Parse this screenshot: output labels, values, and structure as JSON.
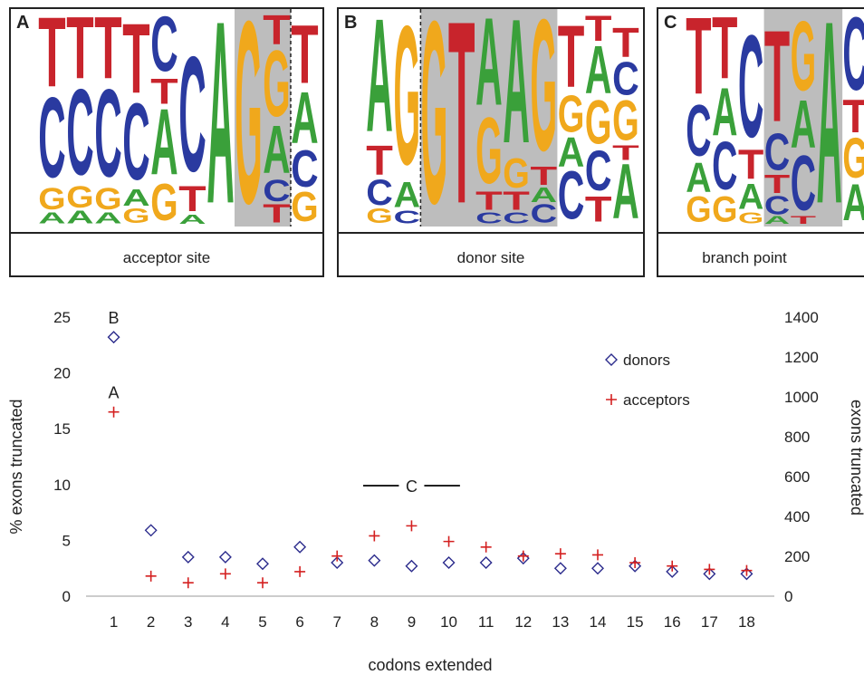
{
  "logos": [
    {
      "letter": "A",
      "caption": "acceptor site",
      "highlight_range": [
        8,
        9
      ],
      "dashed_after": 9,
      "columns": [
        [
          [
            "A",
            6
          ],
          [
            "G",
            12
          ],
          [
            "C",
            44
          ],
          [
            "T",
            38
          ]
        ],
        [
          [
            "A",
            7
          ],
          [
            "G",
            12
          ],
          [
            "C",
            47
          ],
          [
            "T",
            34
          ]
        ],
        [
          [
            "A",
            6
          ],
          [
            "G",
            12
          ],
          [
            "C",
            48
          ],
          [
            "T",
            34
          ]
        ],
        [
          [
            "G",
            8
          ],
          [
            "A",
            9
          ],
          [
            "C",
            42
          ],
          [
            "T",
            38
          ]
        ],
        [
          [
            "G",
            20
          ],
          [
            "A",
            36
          ],
          [
            "T",
            14
          ],
          [
            "C",
            30
          ]
        ],
        [
          [
            "A",
            5
          ],
          [
            "T",
            14
          ],
          [
            "C",
            63
          ]
        ],
        [
          [
            "A",
            100
          ]
        ],
        [
          [
            "G",
            100
          ]
        ],
        [
          [
            "T",
            10
          ],
          [
            "C",
            12
          ],
          [
            "A",
            26
          ],
          [
            "G",
            36
          ],
          [
            "T",
            16
          ]
        ],
        [
          [
            "G",
            16
          ],
          [
            "C",
            20
          ],
          [
            "A",
            28
          ],
          [
            "T",
            32
          ]
        ]
      ]
    },
    {
      "letter": "B",
      "caption": "donor site",
      "highlight_range": [
        3,
        7
      ],
      "dashed_after": 2,
      "columns": [
        [
          [
            "G",
            8
          ],
          [
            "C",
            14
          ],
          [
            "T",
            16
          ],
          [
            "A",
            62
          ]
        ],
        [
          [
            "C",
            7
          ],
          [
            "A",
            14
          ],
          [
            "G",
            76
          ]
        ],
        [
          [
            "G",
            100
          ]
        ],
        [
          [
            "T",
            100
          ]
        ],
        [
          [
            "C",
            6
          ],
          [
            "T",
            10
          ],
          [
            "G",
            36
          ],
          [
            "A",
            48
          ]
        ],
        [
          [
            "C",
            6
          ],
          [
            "T",
            10
          ],
          [
            "G",
            16
          ],
          [
            "A",
            68
          ]
        ],
        [
          [
            "C",
            10
          ],
          [
            "A",
            8
          ],
          [
            "T",
            10
          ],
          [
            "G",
            72
          ]
        ],
        [
          [
            "C",
            26
          ],
          [
            "A",
            16
          ],
          [
            "G",
            20
          ],
          [
            "T",
            34
          ]
        ],
        [
          [
            "T",
            14
          ],
          [
            "C",
            22
          ],
          [
            "G",
            24
          ],
          [
            "A",
            26
          ],
          [
            "T",
            14
          ]
        ],
        [
          [
            "A",
            30
          ],
          [
            "T",
            8
          ],
          [
            "G",
            22
          ],
          [
            "C",
            18
          ],
          [
            "T",
            16
          ]
        ]
      ]
    },
    {
      "letter": "C",
      "caption": "branch point",
      "highlight_range": [
        4,
        6
      ],
      "dashed_after": null,
      "columns": [
        [
          [
            "G",
            14
          ],
          [
            "A",
            16
          ],
          [
            "C",
            28
          ],
          [
            "T",
            42
          ]
        ],
        [
          [
            "G",
            14
          ],
          [
            "C",
            26
          ],
          [
            "A",
            26
          ],
          [
            "T",
            34
          ]
        ],
        [
          [
            "G",
            6
          ],
          [
            "A",
            14
          ],
          [
            "T",
            16
          ],
          [
            "C",
            56
          ]
        ],
        [
          [
            "A",
            4
          ],
          [
            "C",
            10
          ],
          [
            "T",
            10
          ],
          [
            "C",
            20
          ],
          [
            "T",
            50
          ]
        ],
        [
          [
            "T",
            4
          ],
          [
            "C",
            30
          ],
          [
            "A",
            26
          ],
          [
            "G",
            38
          ]
        ],
        [
          [
            "A",
            100
          ]
        ],
        [
          [
            "A",
            20
          ],
          [
            "G",
            22
          ],
          [
            "T",
            18
          ],
          [
            "C",
            40
          ]
        ]
      ]
    }
  ],
  "chart_data": {
    "type": "scatter",
    "x": [
      1,
      2,
      3,
      4,
      5,
      6,
      7,
      8,
      9,
      10,
      11,
      12,
      13,
      14,
      15,
      16,
      17,
      18
    ],
    "series": [
      {
        "name": "donors",
        "marker": "diamond",
        "color": "#2b2b8c",
        "values": [
          23.2,
          5.9,
          3.5,
          3.5,
          2.9,
          4.4,
          3.0,
          3.2,
          2.7,
          3.0,
          3.0,
          3.4,
          2.5,
          2.5,
          2.7,
          2.2,
          2.0,
          2.0
        ]
      },
      {
        "name": "acceptors",
        "marker": "plus",
        "color": "#d42020",
        "values": [
          16.5,
          1.8,
          1.2,
          2.0,
          1.2,
          2.2,
          3.6,
          5.4,
          6.3,
          4.9,
          4.4,
          3.6,
          3.8,
          3.7,
          3.0,
          2.7,
          2.4,
          2.3
        ]
      }
    ],
    "xlabel": "codons extended",
    "ylabel": "% exons truncated",
    "ylabel_right": "exons truncated",
    "ylim": [
      0,
      25
    ],
    "yticks": [
      0,
      5,
      10,
      15,
      20,
      25
    ],
    "ylim_right": [
      0,
      1400
    ],
    "yticks_right": [
      0,
      200,
      400,
      600,
      800,
      1000,
      1200,
      1400
    ],
    "xticks": [
      1,
      2,
      3,
      4,
      5,
      6,
      7,
      8,
      9,
      10,
      11,
      12,
      13,
      14,
      15,
      16,
      17,
      18
    ],
    "legend_position": "top-right",
    "annotations": [
      {
        "text": "B",
        "x": 1,
        "y": 25.0
      },
      {
        "text": "A",
        "x": 1,
        "y": 18.3
      },
      {
        "text": "C",
        "x": 9,
        "y": 9.9,
        "bar_from": 7.7,
        "bar_to": 10.3
      }
    ]
  },
  "colors": {
    "A": "#3aa03a",
    "C": "#2a3aa0",
    "G": "#f0a81c",
    "T": "#c8242c",
    "highlight": "#bdbdbd"
  }
}
